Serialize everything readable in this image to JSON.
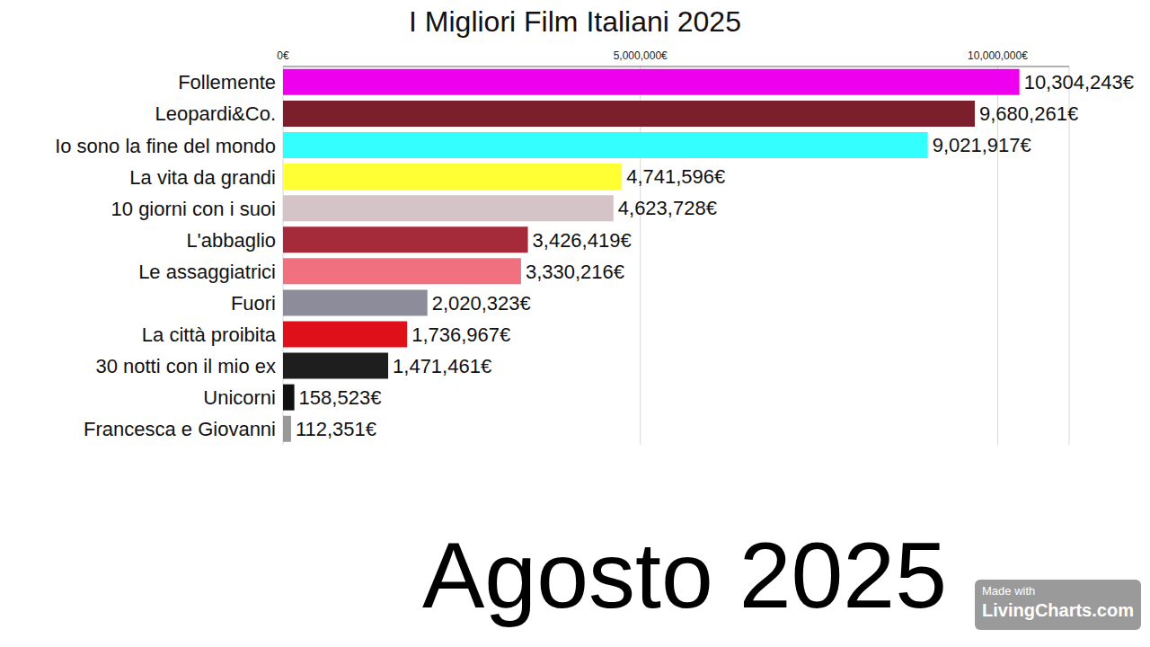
{
  "chart_data": {
    "type": "bar",
    "title": "I Migliori Film Italiani 2025",
    "orientation": "horizontal",
    "categories": [
      "Follemente",
      "Leopardi&Co.",
      "Io sono la fine del mondo",
      "La vita da grandi",
      "10 giorni con i suoi",
      "L'abbaglio",
      "Le assaggiatrici",
      "Fuori",
      "La città proibita",
      "30 notti con il mio ex",
      "Unicorni",
      "Francesca e Giovanni"
    ],
    "values": [
      10304243,
      9680261,
      9021917,
      4741596,
      4623728,
      3426419,
      3330216,
      2020323,
      1736967,
      1471461,
      158523,
      112351
    ],
    "value_labels": [
      "10,304,243€",
      "9,680,261€",
      "9,021,917€",
      "4,741,596€",
      "4,623,728€",
      "3,426,419€",
      "3,330,216€",
      "2,020,323€",
      "1,736,967€",
      "1,471,461€",
      "158,523€",
      "112,351€"
    ],
    "colors": [
      "#ee00ee",
      "#7a1f2b",
      "#33ffff",
      "#ffff33",
      "#d4c4c8",
      "#a52a3a",
      "#f07080",
      "#8c8c9a",
      "#e0101a",
      "#1e1e1e",
      "#111111",
      "#999999"
    ],
    "xlim": [
      0,
      11000000
    ],
    "xticks": [
      {
        "value": 0,
        "label": "0€"
      },
      {
        "value": 5000000,
        "label": "5,000,000€"
      },
      {
        "value": 10000000,
        "label": "10,000,000€"
      }
    ],
    "grid": true,
    "data_labels": true,
    "annotation": "Agosto 2025",
    "watermark": "Made with LivingCharts.com"
  }
}
